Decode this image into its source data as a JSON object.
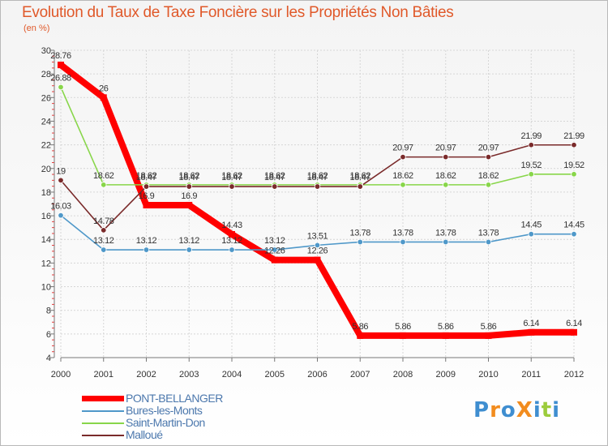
{
  "chart_data": {
    "type": "line",
    "title": "Evolution du Taux de Taxe Foncière sur les Propriétés Non Bâties",
    "ylabel": "(en %)",
    "xlabel": "",
    "ylim": [
      4,
      30
    ],
    "yticks": [
      4,
      6,
      8,
      10,
      12,
      14,
      16,
      18,
      20,
      22,
      24,
      26,
      28,
      30
    ],
    "categories": [
      "2000",
      "2001",
      "2002",
      "2003",
      "2004",
      "2005",
      "2006",
      "2007",
      "2008",
      "2009",
      "2010",
      "2011",
      "2012"
    ],
    "grid": true,
    "series": [
      {
        "name": "PONT-BELLANGER",
        "color": "#ff0000",
        "width": 8,
        "labels": [
          "28.76",
          "26",
          "16.9",
          "16.9",
          "14.43",
          "12.26",
          "12.26",
          "5.86",
          "5.86",
          "5.86",
          "5.86",
          "6.14",
          "6.14"
        ],
        "values": [
          28.76,
          26,
          16.9,
          16.9,
          14.43,
          12.26,
          12.26,
          5.86,
          5.86,
          5.86,
          5.86,
          6.14,
          6.14
        ]
      },
      {
        "name": "Bures-les-Monts",
        "color": "#4f98c9",
        "width": 1.6,
        "labels": [
          "16.03",
          "13.12",
          "13.12",
          "13.12",
          "13.12",
          "13.12",
          "13.51",
          "13.78",
          "13.78",
          "13.78",
          "13.78",
          "14.45",
          "14.45"
        ],
        "values": [
          16.03,
          13.12,
          13.12,
          13.12,
          13.12,
          13.12,
          13.51,
          13.78,
          13.78,
          13.78,
          13.78,
          14.45,
          14.45
        ]
      },
      {
        "name": "Saint-Martin-Don",
        "color": "#88d64a",
        "width": 1.6,
        "labels": [
          "26.88",
          "18.62",
          "18.62",
          "18.62",
          "18.62",
          "18.62",
          "18.62",
          "18.62",
          "18.62",
          "18.62",
          "18.62",
          "19.52",
          "19.52"
        ],
        "values": [
          26.88,
          18.62,
          18.62,
          18.62,
          18.62,
          18.62,
          18.62,
          18.62,
          18.62,
          18.62,
          18.62,
          19.52,
          19.52
        ]
      },
      {
        "name": "Malloué",
        "color": "#7a2a2a",
        "width": 1.6,
        "labels": [
          "19",
          "14.78",
          "18.47",
          "18.47",
          "18.47",
          "18.47",
          "18.47",
          "18.47",
          "20.97",
          "20.97",
          "20.97",
          "21.99",
          "21.99"
        ],
        "values": [
          19,
          14.78,
          18.47,
          18.47,
          18.47,
          18.47,
          18.47,
          18.47,
          20.97,
          20.97,
          20.97,
          21.99,
          21.99
        ]
      }
    ]
  },
  "logo": {
    "text": "ProXiti",
    "letters": [
      {
        "ch": "P",
        "color": "#3f8ed0"
      },
      {
        "ch": "r",
        "color": "#f28c1e"
      },
      {
        "ch": "o",
        "color": "#3f8ed0"
      },
      {
        "ch": "X",
        "color": "#f28c1e"
      },
      {
        "ch": "i",
        "color": "#3f8ed0"
      },
      {
        "ch": "t",
        "color": "#9ccc3c"
      },
      {
        "ch": "i",
        "color": "#3f8ed0"
      }
    ]
  }
}
